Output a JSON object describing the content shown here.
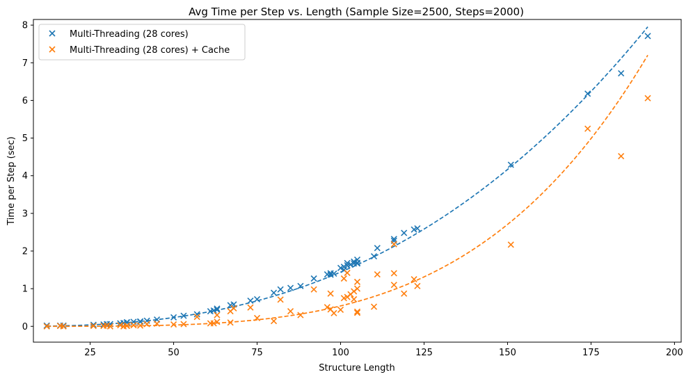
{
  "chart_data": {
    "type": "scatter",
    "title": "Avg Time per Step vs. Length (Sample Size=2500, Steps=2000)",
    "xlabel": "Structure Length",
    "ylabel": "Time per Step (sec)",
    "xlim": [
      8,
      202
    ],
    "ylim": [
      -0.42,
      8.15
    ],
    "xticks": [
      25,
      50,
      75,
      100,
      125,
      150,
      175,
      200
    ],
    "yticks": [
      0,
      1,
      2,
      3,
      4,
      5,
      6,
      7,
      8
    ],
    "legend_position": "top-left",
    "grid": false,
    "series": [
      {
        "name": "Multi-Threading (28 cores)",
        "marker": "x",
        "color": "#1f77b4",
        "points": [
          [
            12,
            0.02
          ],
          [
            16,
            0.02
          ],
          [
            17,
            0.02
          ],
          [
            26,
            0.04
          ],
          [
            29,
            0.05
          ],
          [
            30,
            0.06
          ],
          [
            31,
            0.06
          ],
          [
            34,
            0.08
          ],
          [
            35,
            0.09
          ],
          [
            36,
            0.1
          ],
          [
            36,
            0.11
          ],
          [
            38,
            0.12
          ],
          [
            40,
            0.13
          ],
          [
            40,
            0.12
          ],
          [
            42,
            0.15
          ],
          [
            45,
            0.18
          ],
          [
            50,
            0.24
          ],
          [
            53,
            0.28
          ],
          [
            57,
            0.32
          ],
          [
            61,
            0.4
          ],
          [
            62,
            0.42
          ],
          [
            63,
            0.47
          ],
          [
            63,
            0.44
          ],
          [
            67,
            0.56
          ],
          [
            68,
            0.58
          ],
          [
            73,
            0.68
          ],
          [
            75,
            0.72
          ],
          [
            80,
            0.89
          ],
          [
            82,
            0.98
          ],
          [
            85,
            1.02
          ],
          [
            88,
            1.07
          ],
          [
            92,
            1.27
          ],
          [
            96,
            1.38
          ],
          [
            97,
            1.41
          ],
          [
            98,
            1.4
          ],
          [
            97,
            1.37
          ],
          [
            100,
            1.55
          ],
          [
            101,
            1.58
          ],
          [
            101,
            1.5
          ],
          [
            102,
            1.68
          ],
          [
            102,
            1.62
          ],
          [
            103,
            1.64
          ],
          [
            104,
            1.72
          ],
          [
            104,
            1.67
          ],
          [
            105,
            1.77
          ],
          [
            105,
            1.69
          ],
          [
            105,
            1.67
          ],
          [
            110,
            1.86
          ],
          [
            111,
            2.08
          ],
          [
            116,
            2.27
          ],
          [
            116,
            2.32
          ],
          [
            119,
            2.48
          ],
          [
            122,
            2.57
          ],
          [
            123,
            2.6
          ],
          [
            151,
            4.29
          ],
          [
            174,
            6.18
          ],
          [
            184,
            6.72
          ],
          [
            192,
            7.71
          ]
        ],
        "fit": {
          "kind": "power",
          "a": 8.286e-06,
          "b": 2.62
        }
      },
      {
        "name": "Multi-Threading (28 cores) + Cache",
        "marker": "x",
        "color": "#ff7f0e",
        "points": [
          [
            12,
            0.0
          ],
          [
            16,
            0.01
          ],
          [
            17,
            0.0
          ],
          [
            26,
            0.01
          ],
          [
            29,
            0.01
          ],
          [
            30,
            0.02
          ],
          [
            31,
            0.0
          ],
          [
            34,
            0.03
          ],
          [
            35,
            0.0
          ],
          [
            36,
            0.02
          ],
          [
            36,
            0.01
          ],
          [
            38,
            0.03
          ],
          [
            40,
            0.02
          ],
          [
            42,
            0.06
          ],
          [
            45,
            0.07
          ],
          [
            50,
            0.05
          ],
          [
            53,
            0.06
          ],
          [
            57,
            0.25
          ],
          [
            61,
            0.08
          ],
          [
            62,
            0.08
          ],
          [
            63,
            0.12
          ],
          [
            63,
            0.3
          ],
          [
            67,
            0.1
          ],
          [
            67,
            0.4
          ],
          [
            68,
            0.48
          ],
          [
            73,
            0.5
          ],
          [
            75,
            0.22
          ],
          [
            80,
            0.14
          ],
          [
            82,
            0.71
          ],
          [
            85,
            0.4
          ],
          [
            88,
            0.3
          ],
          [
            92,
            0.98
          ],
          [
            96,
            0.51
          ],
          [
            97,
            0.87
          ],
          [
            97,
            0.45
          ],
          [
            98,
            0.35
          ],
          [
            100,
            0.44
          ],
          [
            101,
            1.27
          ],
          [
            101,
            0.75
          ],
          [
            102,
            1.42
          ],
          [
            102,
            0.78
          ],
          [
            103,
            0.85
          ],
          [
            104,
            0.72
          ],
          [
            104,
            0.93
          ],
          [
            105,
            1.0
          ],
          [
            105,
            1.18
          ],
          [
            105,
            0.36
          ],
          [
            105,
            0.39
          ],
          [
            110,
            0.52
          ],
          [
            111,
            1.38
          ],
          [
            116,
            2.18
          ],
          [
            116,
            1.41
          ],
          [
            116,
            1.1
          ],
          [
            119,
            0.87
          ],
          [
            122,
            1.25
          ],
          [
            123,
            1.07
          ],
          [
            151,
            2.17
          ],
          [
            174,
            5.25
          ],
          [
            184,
            4.52
          ],
          [
            192,
            6.06
          ]
        ],
        "fit": {
          "kind": "power",
          "a": 6.37e-09,
          "b": 3.965
        }
      }
    ]
  }
}
